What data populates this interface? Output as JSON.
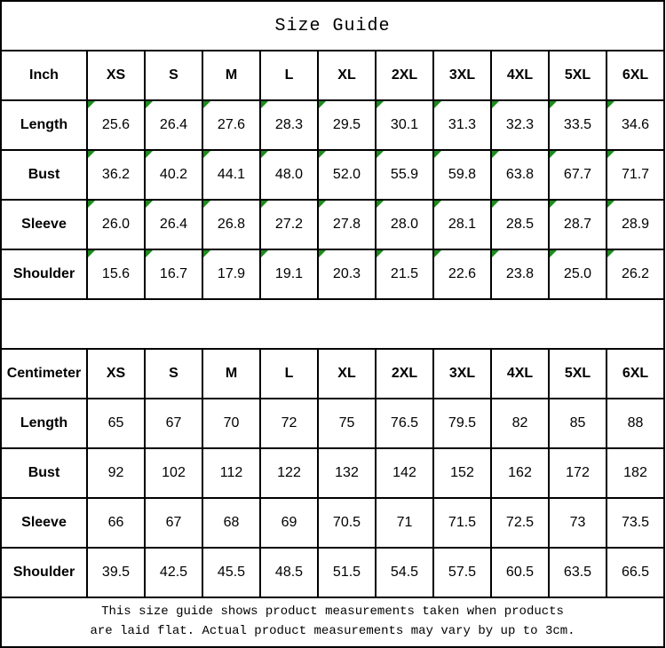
{
  "page": {
    "title": "Size Guide"
  },
  "colors": {
    "background": "#ffffff",
    "border": "#000000",
    "text": "#000000",
    "flag_triangle_green": "#1e8b1e"
  },
  "icons": {
    "flag": "green-corner-triangle-icon"
  },
  "tables": [
    {
      "id": "inch",
      "unit_label": "Inch",
      "sizes": [
        "XS",
        "S",
        "M",
        "L",
        "XL",
        "2XL",
        "3XL",
        "4XL",
        "5XL",
        "6XL"
      ],
      "flagged_cells": true,
      "rows": [
        {
          "label": "Length",
          "values": [
            "25.6",
            "26.4",
            "27.6",
            "28.3",
            "29.5",
            "30.1",
            "31.3",
            "32.3",
            "33.5",
            "34.6"
          ]
        },
        {
          "label": "Bust",
          "values": [
            "36.2",
            "40.2",
            "44.1",
            "48.0",
            "52.0",
            "55.9",
            "59.8",
            "63.8",
            "67.7",
            "71.7"
          ]
        },
        {
          "label": "Sleeve",
          "values": [
            "26.0",
            "26.4",
            "26.8",
            "27.2",
            "27.8",
            "28.0",
            "28.1",
            "28.5",
            "28.7",
            "28.9"
          ]
        },
        {
          "label": "Shoulder",
          "values": [
            "15.6",
            "16.7",
            "17.9",
            "19.1",
            "20.3",
            "21.5",
            "22.6",
            "23.8",
            "25.0",
            "26.2"
          ]
        }
      ]
    },
    {
      "id": "centimeter",
      "unit_label": "Centimeter",
      "sizes": [
        "XS",
        "S",
        "M",
        "L",
        "XL",
        "2XL",
        "3XL",
        "4XL",
        "5XL",
        "6XL"
      ],
      "flagged_cells": false,
      "rows": [
        {
          "label": "Length",
          "values": [
            "65",
            "67",
            "70",
            "72",
            "75",
            "76.5",
            "79.5",
            "82",
            "85",
            "88"
          ]
        },
        {
          "label": "Bust",
          "values": [
            "92",
            "102",
            "112",
            "122",
            "132",
            "142",
            "152",
            "162",
            "172",
            "182"
          ]
        },
        {
          "label": "Sleeve",
          "values": [
            "66",
            "67",
            "68",
            "69",
            "70.5",
            "71",
            "71.5",
            "72.5",
            "73",
            "73.5"
          ]
        },
        {
          "label": "Shoulder",
          "values": [
            "39.5",
            "42.5",
            "45.5",
            "48.5",
            "51.5",
            "54.5",
            "57.5",
            "60.5",
            "63.5",
            "66.5"
          ]
        }
      ]
    }
  ],
  "footer": {
    "line1": "This size guide shows product measurements taken when products",
    "line2": "are laid flat. Actual product measurements may vary by up to 3cm."
  }
}
